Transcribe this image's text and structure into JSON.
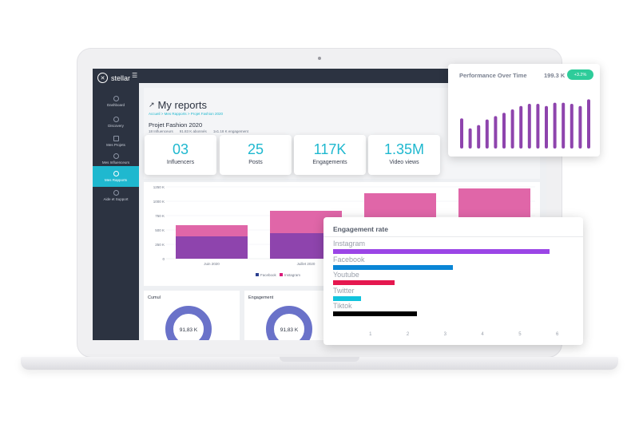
{
  "app": {
    "logo_text": "stellar",
    "menu_toggle_icon": "menu-collapse-icon"
  },
  "sidebar": {
    "items": [
      {
        "label": "Dashboard",
        "icon": "dashboard-icon",
        "active": false
      },
      {
        "label": "Discovery",
        "icon": "compass-icon",
        "active": false
      },
      {
        "label": "Mes Projets",
        "icon": "folder-icon",
        "active": false
      },
      {
        "label": "Mes Influenceurs",
        "icon": "user-icon",
        "active": false
      },
      {
        "label": "Mes Rapports",
        "icon": "chart-line-icon",
        "active": true
      },
      {
        "label": "Aide et Support",
        "icon": "help-icon",
        "active": false
      }
    ]
  },
  "header": {
    "title": "My reports",
    "breadcrumb": "Accueil  >  Mes Rapports  >  Projet Fashion 2020",
    "project_name": "Projet Fashion 2020",
    "meta": [
      "18 Influenceurs",
      "91.83 K abonnés",
      "1x1.18 K engagement"
    ]
  },
  "stats": [
    {
      "value": "03",
      "label": "Influencers"
    },
    {
      "value": "25",
      "label": "Posts"
    },
    {
      "value": "117K",
      "label": "Engagements"
    },
    {
      "value": "1.35M",
      "label": "Video views"
    }
  ],
  "main_chart": {
    "y_ticks": [
      "1250 K",
      "1000 K",
      "750 K",
      "500 K",
      "250 K",
      "0"
    ],
    "x_labels": [
      "Juin 2020",
      "Juillet 2020"
    ],
    "legend": [
      "Facebook",
      "Instagram"
    ],
    "colors": {
      "Facebook": "#2b3f8f",
      "Instagram": "#d81b7a",
      "lower": "#8e44ad",
      "upper": "#e066a8"
    }
  },
  "chart_data": [
    {
      "type": "bar",
      "title": "Performance Over Time",
      "headline_value": "199.3 K",
      "badge": "+3.2%",
      "values": [
        54,
        36,
        42,
        52,
        58,
        64,
        70,
        76,
        80,
        80,
        76,
        82,
        82,
        80,
        76,
        88
      ],
      "ylim": [
        0,
        100
      ],
      "color": "#8e44ad"
    },
    {
      "type": "bar",
      "title": "Engagement rate",
      "orientation": "horizontal",
      "categories": [
        "Instagram",
        "Facebook",
        "Youtube",
        "Twitter",
        "Tiktok"
      ],
      "values": [
        5.8,
        3.2,
        1.65,
        0.75,
        2.25
      ],
      "x_ticks": [
        "1",
        "2",
        "3",
        "4",
        "5",
        "6"
      ],
      "xlim": [
        0,
        6.2
      ],
      "colors": [
        "#9b45e6",
        "#0a86d6",
        "#e5184f",
        "#12c3dd",
        "#000000"
      ]
    }
  ],
  "panels": {
    "left_title": "Cumul",
    "right_title": "Engagement",
    "donut_value": "91,83 K"
  }
}
